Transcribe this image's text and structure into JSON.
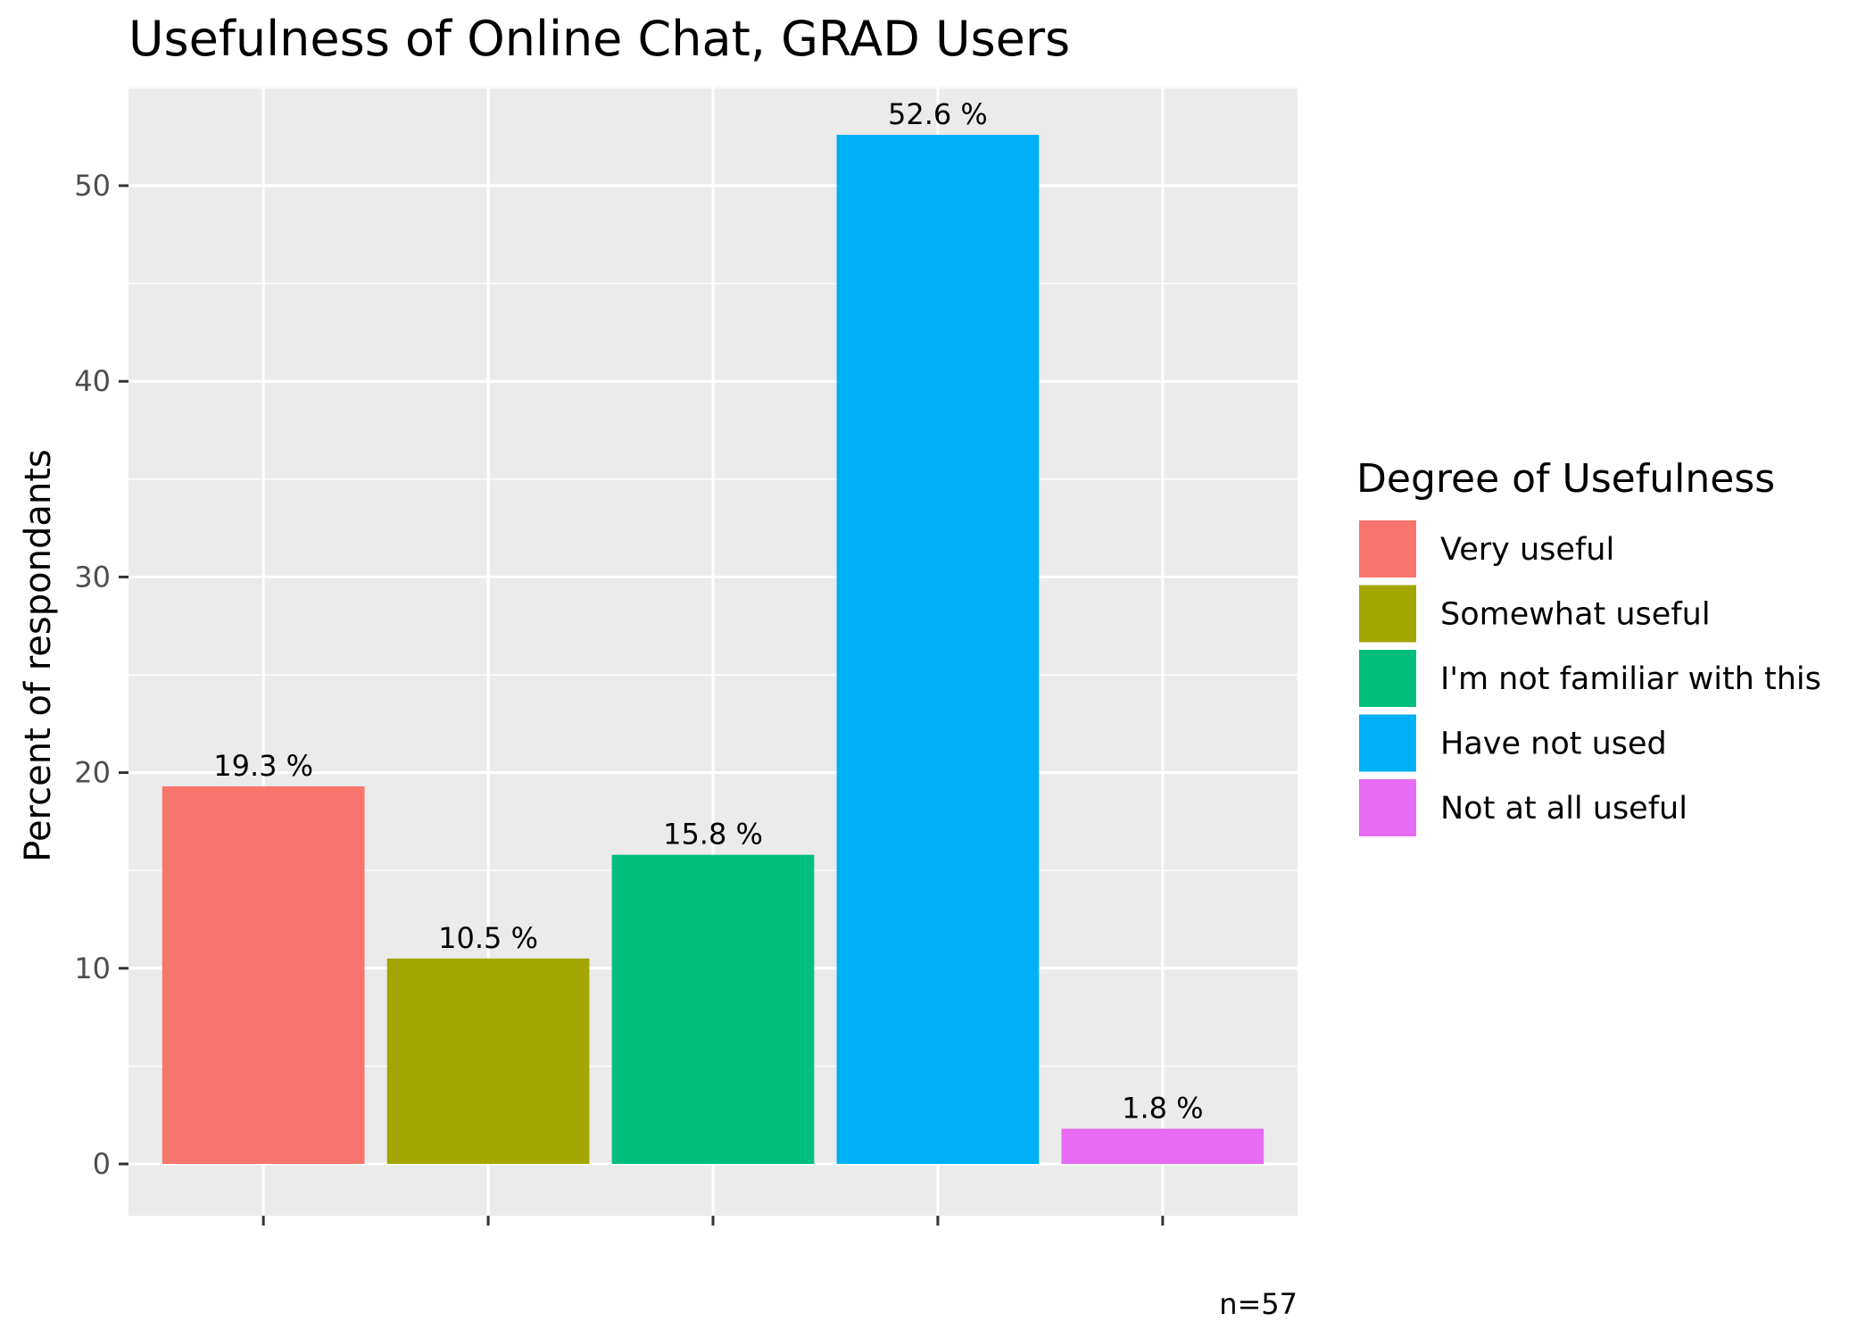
{
  "chart_data": {
    "type": "bar",
    "title": "Usefulness of Online Chat,  GRAD Users",
    "ylabel": "Percent of respondants",
    "xlabel": "",
    "ylim": [
      0,
      55
    ],
    "yticks": [
      0,
      10,
      20,
      30,
      40,
      50
    ],
    "categories": [
      "Very useful",
      "Somewhat useful",
      "I'm not familiar with this",
      "Have not used",
      "Not at all useful"
    ],
    "values": [
      19.3,
      10.5,
      15.8,
      52.6,
      1.8
    ],
    "data_labels": [
      "19.3 %",
      "10.5 %",
      "15.8 %",
      "52.6 %",
      "1.8 %"
    ],
    "colors": [
      "#F8766D",
      "#A3A500",
      "#00BF7D",
      "#00B0F6",
      "#E76BF3"
    ],
    "legend": {
      "title": "Degree of Usefulness",
      "entries": [
        "Very useful",
        "Somewhat useful",
        "I'm not familiar with this",
        "Have not used",
        "Not at all useful"
      ],
      "placement": "right"
    },
    "caption": "n=57",
    "grid": true,
    "panel_background": "#EBEBEB",
    "grid_color": "#FFFFFF"
  }
}
